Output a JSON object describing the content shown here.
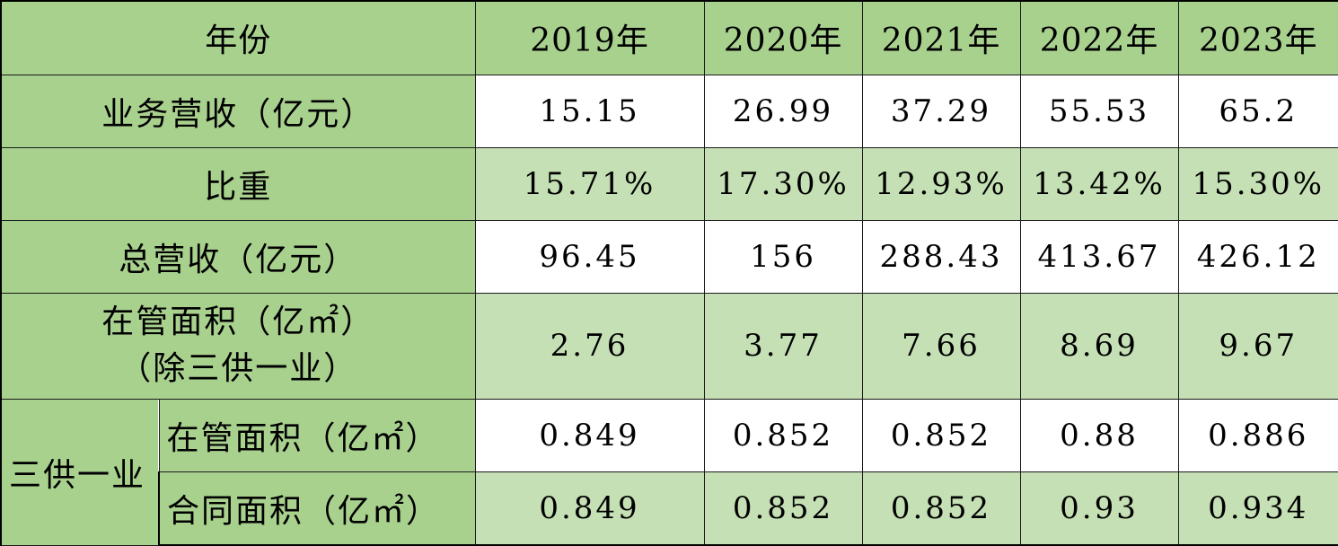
{
  "header": {
    "row_label": "年份",
    "years": [
      "2019年",
      "2020年",
      "2021年",
      "2022年",
      "2023年"
    ]
  },
  "rows": [
    {
      "label": "业务营收（亿元）",
      "values": [
        "15.15",
        "26.99",
        "37.29",
        "55.53",
        "65.2"
      ]
    },
    {
      "label": "比重",
      "values": [
        "15.71%",
        "17.30%",
        "12.93%",
        "13.42%",
        "15.30%"
      ]
    },
    {
      "label": "总营收（亿元）",
      "values": [
        "96.45",
        "156",
        "288.43",
        "413.67",
        "426.12"
      ]
    },
    {
      "label_line1": "在管面积（亿㎡）",
      "label_line2": "（除三供一业）",
      "values": [
        "2.76",
        "3.77",
        "7.66",
        "8.69",
        "9.67"
      ]
    }
  ],
  "group": {
    "label": "三供一业",
    "rows": [
      {
        "label": "在管面积（亿㎡）",
        "values": [
          "0.849",
          "0.852",
          "0.852",
          "0.88",
          "0.886"
        ]
      },
      {
        "label": "合同面积（亿㎡）",
        "values": [
          "0.849",
          "0.852",
          "0.852",
          "0.93",
          "0.934"
        ]
      }
    ]
  },
  "colors": {
    "header_green": "#a9d18e",
    "band_green": "#c5e0b4",
    "white": "#ffffff",
    "border": "#1a1a1a"
  }
}
